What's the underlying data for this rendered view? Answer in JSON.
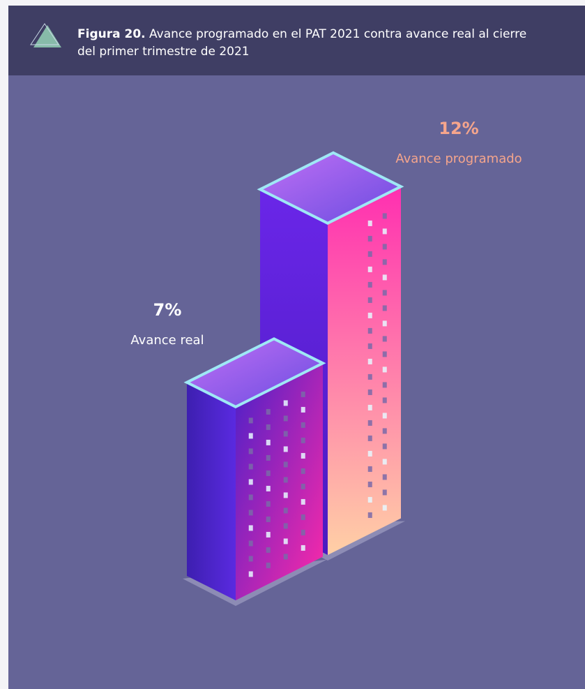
{
  "chart_data": {
    "type": "bar",
    "figure_label": "Figura 20.",
    "title": "Avance programado en el PAT 2021 contra avance real al cierre del primer trimestre de 2021",
    "categories": [
      "Avance real",
      "Avance programado"
    ],
    "values": [
      7,
      12
    ],
    "value_labels": [
      "7%",
      "12%"
    ],
    "colors": [
      "#ffffff",
      "#f5a58c"
    ]
  }
}
